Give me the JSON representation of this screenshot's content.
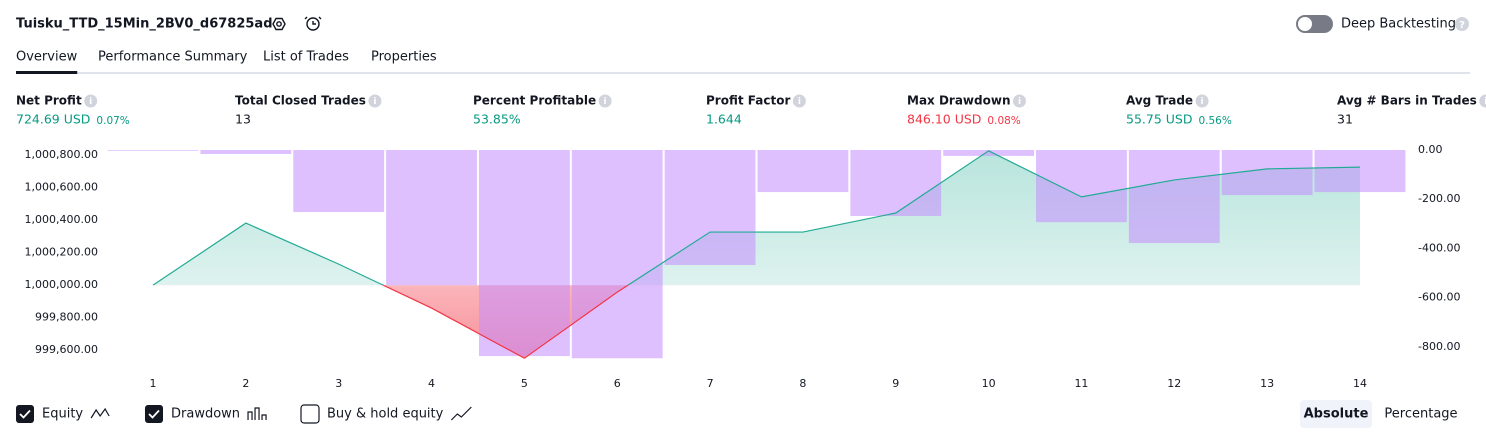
{
  "header": {
    "strategy_name": "Tuisku_TTD_15Min_2BV0_d67825ad",
    "deep_backtesting": "Deep Backtesting"
  },
  "tabs": [
    "Overview",
    "Performance Summary",
    "List of Trades",
    "Properties"
  ],
  "metrics": [
    {
      "label": "Net Profit",
      "value": "724.69 USD",
      "percent": "0.07%",
      "color": "#089981"
    },
    {
      "label": "Total Closed Trades",
      "value": "13"
    },
    {
      "label": "Percent Profitable",
      "value": "53.85%",
      "color": "#089981"
    },
    {
      "label": "Profit Factor",
      "value": "1.644",
      "color": "#089981"
    },
    {
      "label": "Max Drawdown",
      "value": "846.10 USD",
      "percent": "0.08%",
      "color": "#f23645"
    },
    {
      "label": "Avg Trade",
      "value": "55.75 USD",
      "percent": "0.56%",
      "color": "#089981"
    },
    {
      "label": "Avg # Bars in Trades",
      "value": "31"
    }
  ],
  "chart_data": {
    "type": "line",
    "x": [
      1,
      2,
      3,
      4,
      5,
      6,
      7,
      8,
      9,
      10,
      11,
      12,
      13,
      14
    ],
    "xlim": [
      0.5,
      14.5
    ],
    "xticks": [
      1,
      2,
      3,
      4,
      5,
      6,
      7,
      8,
      9,
      10,
      11,
      12,
      13,
      14
    ],
    "series": [
      {
        "name": "Equity",
        "type": "area",
        "color": "#22ab94",
        "negative_color": "#f23645",
        "values": [
          1000000,
          1000381,
          1000129,
          999859,
          999551,
          999957,
          1000326,
          1000326,
          1000443,
          1000825,
          1000542,
          1000646,
          1000714,
          1000725
        ]
      },
      {
        "name": "Drawdown",
        "type": "bar",
        "axis": "y2",
        "color": "#c58dff",
        "values": [
          -3,
          -16,
          -252,
          -549,
          -837,
          -846,
          -467,
          -171,
          -268,
          -24,
          -293,
          -378,
          -183,
          -171
        ]
      }
    ],
    "ylim": [
      999540,
      1000830
    ],
    "yticks": [
      {
        "value": 1000800,
        "label": "1,000,800.00"
      },
      {
        "value": 1000600,
        "label": "1,000,600.00"
      },
      {
        "value": 1000400,
        "label": "1,000,400.00"
      },
      {
        "value": 1000200,
        "label": "1,000,200.00"
      },
      {
        "value": 1000000,
        "label": "1,000,000.00"
      },
      {
        "value": 999800,
        "label": "999,800.00"
      },
      {
        "value": 999600,
        "label": "999,600.00"
      }
    ],
    "y2lim": [
      -853,
      0
    ],
    "y2ticks": [
      {
        "value": 0,
        "label": "0.00"
      },
      {
        "value": -200,
        "label": "-200.00"
      },
      {
        "value": -400,
        "label": "-400.00"
      },
      {
        "value": -600,
        "label": "-600.00"
      },
      {
        "value": -800,
        "label": "-800.00"
      }
    ]
  },
  "footer": {
    "toggles": [
      {
        "label": "Equity",
        "checked": true
      },
      {
        "label": "Drawdown",
        "checked": true
      },
      {
        "label": "Buy & hold equity",
        "checked": false
      }
    ],
    "modes": [
      "Absolute",
      "Percentage"
    ]
  }
}
